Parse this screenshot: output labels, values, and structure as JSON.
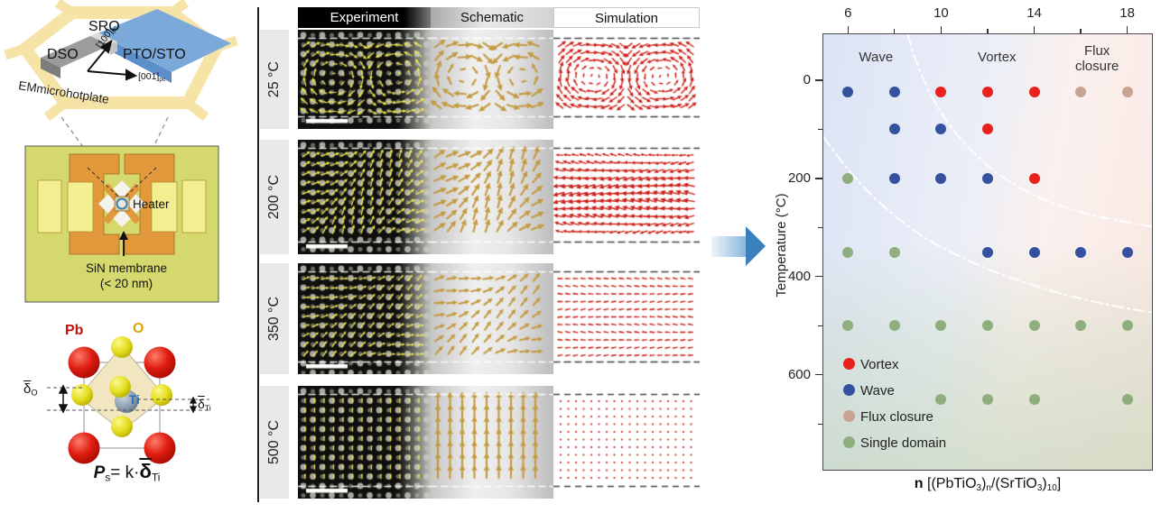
{
  "left_panel": {
    "hotplate": {
      "sro_label": "SRO",
      "dso_label": "DSO",
      "pto_sto_label": "PTO/STO",
      "axis_100": [
        {
          "t": "[100]"
        },
        {
          "t": "pc",
          "sub": true
        }
      ],
      "axis_001": [
        {
          "t": "[001]"
        },
        {
          "t": "pc",
          "sub": true
        }
      ],
      "platform_label": "EMmicrohotplate"
    },
    "chip": {
      "heater_label": "Heater",
      "membrane_label": "SiN membrane",
      "membrane_note": "(< 20 nm)"
    },
    "crystal": {
      "pb_label": "Pb",
      "o_label": "O",
      "ti_label": "Ti",
      "delta_o": [
        {
          "t": "δ",
          "bar": true
        },
        {
          "t": "O",
          "sub": true
        }
      ],
      "delta_ti": [
        {
          "t": "δ",
          "bar": true
        },
        {
          "t": "Ti",
          "sub": true
        }
      ],
      "formula": [
        {
          "t": "P",
          "b": true,
          "i": true
        },
        {
          "t": "s",
          "sub": true
        },
        {
          "t": "= k·"
        },
        {
          "t": "δ",
          "big": true,
          "bar": true
        },
        {
          "t": "Ti",
          "sub": true
        }
      ]
    }
  },
  "middle_panel": {
    "column_headers": [
      "Experiment",
      "Schematic",
      "Simulation"
    ],
    "rows": [
      {
        "temperature": "25 °C",
        "pattern": "vortex"
      },
      {
        "temperature": "200 °C",
        "pattern": "wave"
      },
      {
        "temperature": "350 °C",
        "pattern": "wave-weak"
      },
      {
        "temperature": "500 °C",
        "pattern": "uniform-up"
      }
    ],
    "colors": {
      "experiment_arrows": "#f0e84e",
      "schematic_arrows": "#c49a3f",
      "simulation_arrows": "#cc1d17"
    }
  },
  "chart_data": {
    "type": "scatter",
    "ylabel": "Temperature (°C)",
    "xlabel_parts": [
      {
        "t": "n",
        "b": true
      },
      {
        "t": " [(PbTiO"
      },
      {
        "t": "3",
        "sub": true
      },
      {
        "t": ")"
      },
      {
        "t": "n",
        "sub": true
      },
      {
        "t": "/(SrTiO"
      },
      {
        "t": "3",
        "sub": true
      },
      {
        "t": ")"
      },
      {
        "t": "10",
        "sub": true
      },
      {
        "t": "]"
      }
    ],
    "x_axis": {
      "side": "top",
      "major_ticks": [
        6,
        10,
        14,
        18
      ],
      "minor_ticks": [
        8,
        12,
        16
      ],
      "range": [
        4.9,
        19.1
      ]
    },
    "y_axis": {
      "side": "left",
      "major_ticks": [
        0,
        200,
        400,
        600
      ],
      "minor_ticks": [
        100,
        300,
        500,
        700
      ],
      "range": [
        -95,
        795
      ],
      "inverted": true
    },
    "region_labels": [
      {
        "text": "Wave",
        "n": 7.2,
        "T": -45
      },
      {
        "text": "Vortex",
        "n": 12.4,
        "T": -45
      },
      {
        "text": "Flux closure",
        "n": 16.7,
        "T": -58,
        "two_line": true
      }
    ],
    "phases": {
      "Vortex": "#e8211d",
      "Wave": "#34519f",
      "Flux closure": "#c9a392",
      "Single domain": "#8fae7e"
    },
    "legend": [
      "Vortex",
      "Wave",
      "Flux closure",
      "Single domain"
    ],
    "points": [
      {
        "n": 6,
        "T": 25,
        "phase": "Wave"
      },
      {
        "n": 8,
        "T": 25,
        "phase": "Wave"
      },
      {
        "n": 10,
        "T": 25,
        "phase": "Vortex"
      },
      {
        "n": 12,
        "T": 25,
        "phase": "Vortex"
      },
      {
        "n": 14,
        "T": 25,
        "phase": "Vortex"
      },
      {
        "n": 16,
        "T": 25,
        "phase": "Flux closure"
      },
      {
        "n": 18,
        "T": 25,
        "phase": "Flux closure"
      },
      {
        "n": 8,
        "T": 100,
        "phase": "Wave"
      },
      {
        "n": 10,
        "T": 100,
        "phase": "Wave"
      },
      {
        "n": 12,
        "T": 100,
        "phase": "Vortex"
      },
      {
        "n": 6,
        "T": 200,
        "phase": "Single domain"
      },
      {
        "n": 8,
        "T": 200,
        "phase": "Wave"
      },
      {
        "n": 10,
        "T": 200,
        "phase": "Wave"
      },
      {
        "n": 12,
        "T": 200,
        "phase": "Wave"
      },
      {
        "n": 14,
        "T": 200,
        "phase": "Vortex"
      },
      {
        "n": 6,
        "T": 350,
        "phase": "Single domain"
      },
      {
        "n": 8,
        "T": 350,
        "phase": "Single domain"
      },
      {
        "n": 12,
        "T": 350,
        "phase": "Wave"
      },
      {
        "n": 14,
        "T": 350,
        "phase": "Wave"
      },
      {
        "n": 16,
        "T": 350,
        "phase": "Wave"
      },
      {
        "n": 18,
        "T": 350,
        "phase": "Wave"
      },
      {
        "n": 6,
        "T": 500,
        "phase": "Single domain"
      },
      {
        "n": 8,
        "T": 500,
        "phase": "Single domain"
      },
      {
        "n": 10,
        "T": 500,
        "phase": "Single domain"
      },
      {
        "n": 12,
        "T": 500,
        "phase": "Single domain"
      },
      {
        "n": 14,
        "T": 500,
        "phase": "Single domain"
      },
      {
        "n": 16,
        "T": 500,
        "phase": "Single domain"
      },
      {
        "n": 18,
        "T": 500,
        "phase": "Single domain"
      },
      {
        "n": 10,
        "T": 650,
        "phase": "Single domain"
      },
      {
        "n": 12,
        "T": 650,
        "phase": "Single domain"
      },
      {
        "n": 14,
        "T": 650,
        "phase": "Single domain"
      },
      {
        "n": 18,
        "T": 650,
        "phase": "Single domain"
      }
    ]
  }
}
